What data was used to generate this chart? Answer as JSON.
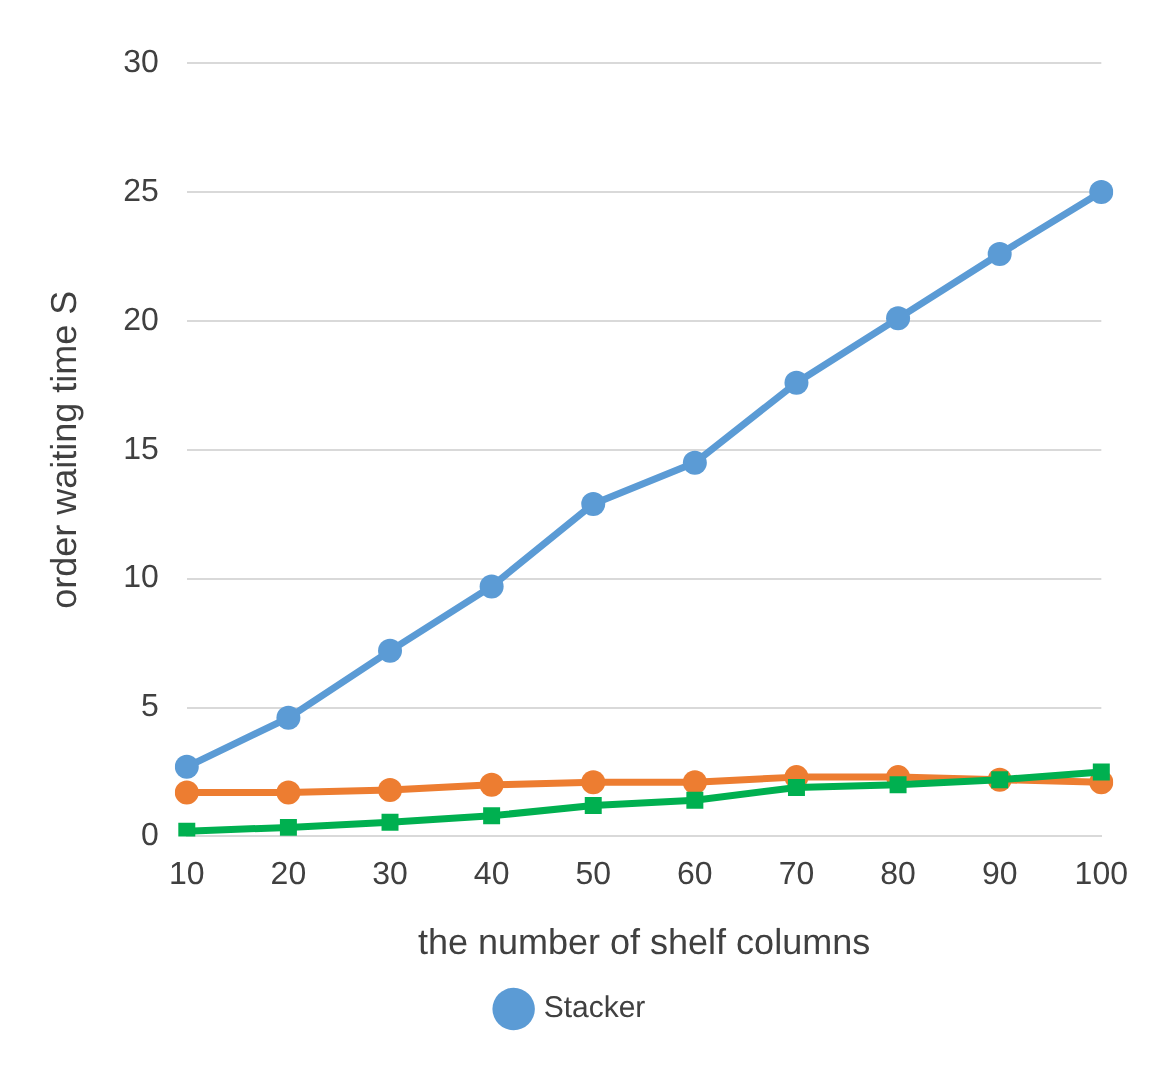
{
  "chart_data": {
    "type": "line",
    "xlabel": "the number of shelf columns",
    "ylabel": "order waiting time S",
    "categories": [
      "10",
      "20",
      "30",
      "40",
      "50",
      "60",
      "70",
      "80",
      "90",
      "100"
    ],
    "series": [
      {
        "name": "Stacker",
        "color": "#5b9bd5",
        "marker": "circle",
        "values": [
          2.7,
          4.6,
          7.2,
          9.7,
          12.9,
          14.5,
          17.6,
          20.1,
          22.6,
          25.0
        ]
      },
      {
        "color": "#ed7d31",
        "marker": "circle",
        "values": [
          1.7,
          1.7,
          1.8,
          2.0,
          2.1,
          2.1,
          2.3,
          2.3,
          2.2,
          2.1
        ]
      },
      {
        "color": "#00b050",
        "marker": "square",
        "values": [
          0.2,
          0.35,
          0.55,
          0.8,
          1.2,
          1.4,
          1.9,
          2.0,
          2.2,
          2.5
        ]
      }
    ],
    "ylim": [
      0,
      30
    ],
    "yticks": [
      0,
      5,
      10,
      15,
      20,
      25,
      30
    ],
    "grid": "y",
    "legend": "bottom",
    "line_style": "solid"
  }
}
